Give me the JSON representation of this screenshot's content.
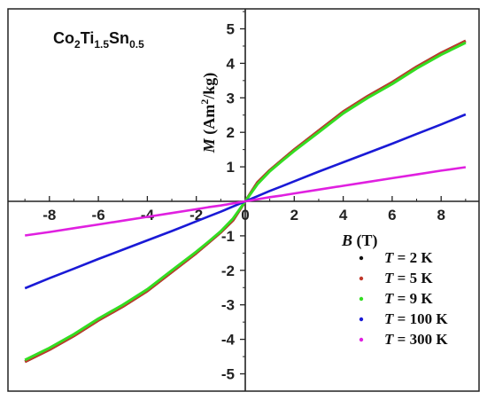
{
  "chart_data": {
    "type": "line",
    "title": "",
    "annotation": {
      "base": [
        "Co",
        "Ti",
        "Sn"
      ],
      "subscripts": [
        "2",
        "1.5",
        "0.5"
      ]
    },
    "xlabel": {
      "symbol": "B",
      "unit": " (T)"
    },
    "ylabel": {
      "symbol": "M",
      "unit_pre": " (Am",
      "sup": "2",
      "unit_post": "/kg)"
    },
    "xlim": [
      -9,
      9
    ],
    "ylim": [
      -5.5,
      5.5
    ],
    "xticks": [
      -8,
      -6,
      -4,
      -2,
      0,
      2,
      4,
      6,
      8
    ],
    "yticks": [
      -5,
      -4,
      -3,
      -2,
      -1,
      0,
      1,
      2,
      3,
      4,
      5
    ],
    "grid": false,
    "legend_position": "bottom-right",
    "legend_symbol": "T",
    "x": [
      0,
      0.5,
      1,
      1.5,
      2,
      3,
      4,
      5,
      6,
      7,
      8,
      9
    ],
    "series": [
      {
        "name": " = 2 K",
        "color": "#111111",
        "values": [
          0,
          0.55,
          0.9,
          1.2,
          1.5,
          2.05,
          2.6,
          3.05,
          3.45,
          3.9,
          4.3,
          4.65
        ]
      },
      {
        "name": " = 5 K",
        "color": "#c0392b",
        "values": [
          0,
          0.55,
          0.9,
          1.2,
          1.5,
          2.05,
          2.6,
          3.05,
          3.45,
          3.9,
          4.3,
          4.65
        ]
      },
      {
        "name": " = 9 K",
        "color": "#33dd22",
        "values": [
          0,
          0.5,
          0.87,
          1.17,
          1.46,
          2.0,
          2.55,
          3.0,
          3.4,
          3.85,
          4.25,
          4.6
        ]
      },
      {
        "name": " = 100 K",
        "color": "#1a1ad6",
        "values": [
          0,
          0.15,
          0.3,
          0.44,
          0.58,
          0.86,
          1.13,
          1.4,
          1.67,
          1.95,
          2.23,
          2.52
        ]
      },
      {
        "name": " = 300 K",
        "color": "#e020e0",
        "values": [
          0,
          0.06,
          0.12,
          0.17,
          0.23,
          0.34,
          0.45,
          0.56,
          0.67,
          0.78,
          0.89,
          0.99
        ]
      }
    ]
  }
}
